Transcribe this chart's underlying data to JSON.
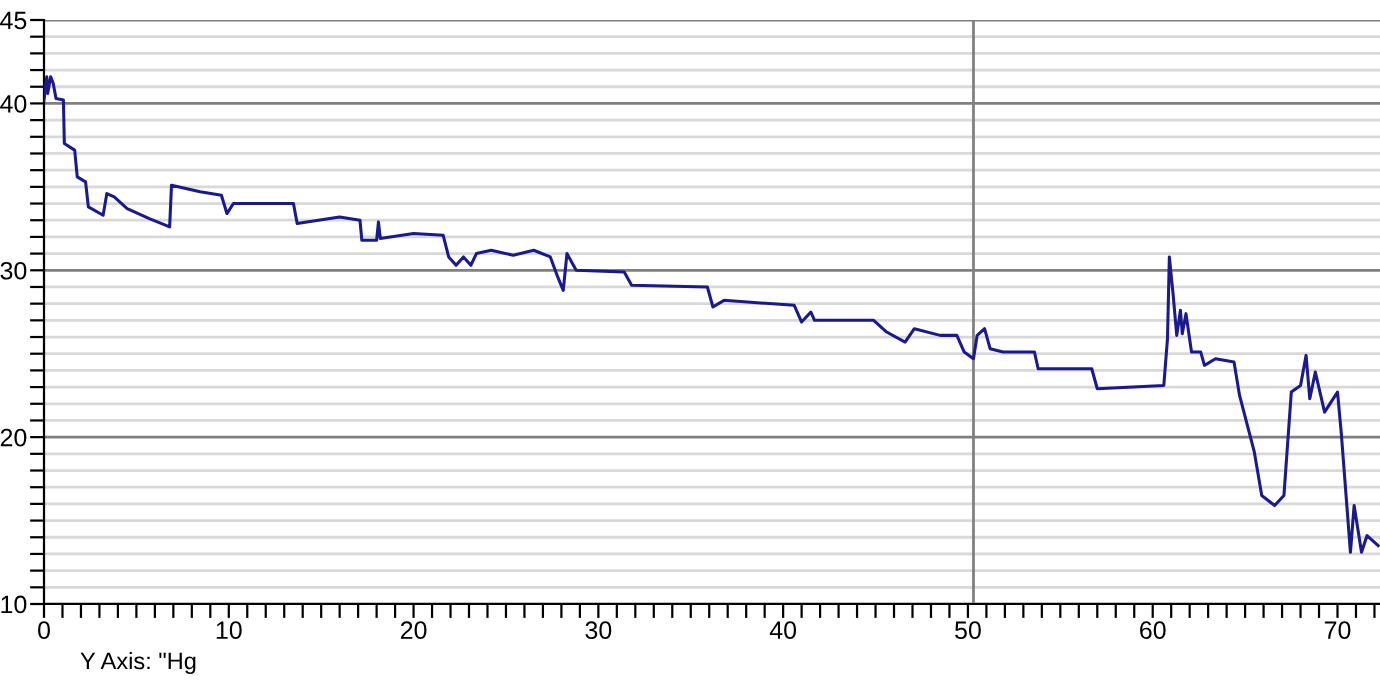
{
  "chart_data": {
    "type": "line",
    "annotations": [
      "Y Axis: \"Hg"
    ],
    "xlim": [
      0,
      72.3
    ],
    "ylim": [
      10,
      45
    ],
    "xticks": [
      0,
      {
        "value": 1,
        "label": null
      },
      {
        "value": 2,
        "label": null
      },
      {
        "value": 3,
        "label": null
      },
      {
        "value": 4,
        "label": null
      },
      {
        "value": 5,
        "label": null
      },
      {
        "value": 6,
        "label": null
      },
      {
        "value": 7,
        "label": null
      },
      {
        "value": 8,
        "label": null
      },
      {
        "value": 9,
        "label": null
      },
      10,
      {
        "value": 11,
        "label": null
      },
      {
        "value": 12,
        "label": null
      },
      {
        "value": 13,
        "label": null
      },
      {
        "value": 14,
        "label": null
      },
      {
        "value": 15,
        "label": null
      },
      {
        "value": 16,
        "label": null
      },
      {
        "value": 17,
        "label": null
      },
      {
        "value": 18,
        "label": null
      },
      {
        "value": 19,
        "label": null
      },
      20,
      {
        "value": 21,
        "label": null
      },
      {
        "value": 22,
        "label": null
      },
      {
        "value": 23,
        "label": null
      },
      {
        "value": 24,
        "label": null
      },
      {
        "value": 25,
        "label": null
      },
      {
        "value": 26,
        "label": null
      },
      {
        "value": 27,
        "label": null
      },
      {
        "value": 28,
        "label": null
      },
      {
        "value": 29,
        "label": null
      },
      30,
      {
        "value": 31,
        "label": null
      },
      {
        "value": 32,
        "label": null
      },
      {
        "value": 33,
        "label": null
      },
      {
        "value": 34,
        "label": null
      },
      {
        "value": 35,
        "label": null
      },
      {
        "value": 36,
        "label": null
      },
      {
        "value": 37,
        "label": null
      },
      {
        "value": 38,
        "label": null
      },
      {
        "value": 39,
        "label": null
      },
      40,
      {
        "value": 41,
        "label": null
      },
      {
        "value": 42,
        "label": null
      },
      {
        "value": 43,
        "label": null
      },
      {
        "value": 44,
        "label": null
      },
      {
        "value": 45,
        "label": null
      },
      {
        "value": 46,
        "label": null
      },
      {
        "value": 47,
        "label": null
      },
      {
        "value": 48,
        "label": null
      },
      {
        "value": 49,
        "label": null
      },
      50,
      {
        "value": 51,
        "label": null
      },
      {
        "value": 52,
        "label": null
      },
      {
        "value": 53,
        "label": null
      },
      {
        "value": 54,
        "label": null
      },
      {
        "value": 55,
        "label": null
      },
      {
        "value": 56,
        "label": null
      },
      {
        "value": 57,
        "label": null
      },
      {
        "value": 58,
        "label": null
      },
      {
        "value": 59,
        "label": null
      },
      60,
      {
        "value": 61,
        "label": null
      },
      {
        "value": 62,
        "label": null
      },
      {
        "value": 63,
        "label": null
      },
      {
        "value": 64,
        "label": null
      },
      {
        "value": 65,
        "label": null
      },
      {
        "value": 66,
        "label": null
      },
      {
        "value": 67,
        "label": null
      },
      {
        "value": 68,
        "label": null
      },
      {
        "value": 69,
        "label": null
      },
      70,
      {
        "value": 71,
        "label": null
      },
      {
        "value": 72,
        "label": null
      }
    ],
    "yticks": [
      10,
      {
        "value": 11,
        "label": null
      },
      {
        "value": 12,
        "label": null
      },
      {
        "value": 13,
        "label": null
      },
      {
        "value": 14,
        "label": null
      },
      {
        "value": 15,
        "label": null
      },
      {
        "value": 16,
        "label": null
      },
      {
        "value": 17,
        "label": null
      },
      {
        "value": 18,
        "label": null
      },
      {
        "value": 19,
        "label": null
      },
      20,
      {
        "value": 21,
        "label": null
      },
      {
        "value": 22,
        "label": null
      },
      {
        "value": 23,
        "label": null
      },
      {
        "value": 24,
        "label": null
      },
      {
        "value": 25,
        "label": null
      },
      {
        "value": 26,
        "label": null
      },
      {
        "value": 27,
        "label": null
      },
      {
        "value": 28,
        "label": null
      },
      {
        "value": 29,
        "label": null
      },
      30,
      {
        "value": 31,
        "label": null
      },
      {
        "value": 32,
        "label": null
      },
      {
        "value": 33,
        "label": null
      },
      {
        "value": 34,
        "label": null
      },
      {
        "value": 35,
        "label": null
      },
      {
        "value": 36,
        "label": null
      },
      {
        "value": 37,
        "label": null
      },
      {
        "value": 38,
        "label": null
      },
      {
        "value": 39,
        "label": null
      },
      40,
      {
        "value": 41,
        "label": null
      },
      {
        "value": 42,
        "label": null
      },
      {
        "value": 43,
        "label": null
      },
      {
        "value": 44,
        "label": null
      },
      45
    ],
    "grid": "y",
    "marker": "none",
    "line_style": "solid",
    "ref_lines": [
      {
        "axis": "x",
        "value": 50.3,
        "color": "#808080"
      }
    ],
    "series": [
      {
        "color": "#1a1a8c",
        "x": [
          0,
          0.15,
          0.2,
          0.36,
          0.5,
          0.65,
          1.05,
          1.1,
          1.66,
          1.8,
          2.25,
          2.4,
          3.2,
          3.4,
          3.8,
          4.5,
          5.7,
          6.8,
          6.9,
          8.45,
          9.6,
          9.9,
          10.25,
          13.5,
          13.7,
          16.0,
          17.1,
          17.2,
          18.0,
          18.1,
          18.2,
          20.0,
          21.6,
          21.9,
          22.3,
          22.7,
          23.1,
          23.4,
          24.2,
          25.4,
          26.5,
          27.4,
          27.8,
          28.1,
          28.3,
          28.8,
          31.4,
          31.8,
          35.9,
          36.2,
          36.8,
          40.6,
          41.0,
          41.5,
          41.7,
          44.9,
          45.6,
          46.6,
          47.1,
          48.5,
          49.4,
          49.8,
          50.3,
          50.5,
          50.9,
          51.2,
          51.9,
          53.6,
          53.8,
          56.7,
          57.0,
          60.6,
          60.8,
          60.9,
          61.1,
          61.3,
          61.5,
          61.6,
          61.8,
          62.1,
          62.6,
          62.8,
          63.4,
          64.4,
          64.7,
          65.5,
          65.9,
          66.6,
          67.1,
          67.5,
          68.0,
          68.3,
          68.5,
          68.8,
          69.3,
          70.0,
          70.2,
          70.7,
          70.9,
          71.3,
          71.6,
          72.2
        ],
        "values": [
          40.2,
          41.6,
          40.6,
          41.6,
          41.2,
          40.3,
          40.2,
          37.6,
          37.2,
          35.6,
          35.3,
          33.8,
          33.3,
          34.6,
          34.4,
          33.7,
          33.1,
          32.6,
          35.1,
          34.7,
          34.5,
          33.4,
          34.0,
          34.0,
          32.8,
          33.2,
          33.0,
          31.8,
          31.8,
          32.9,
          31.9,
          32.2,
          32.1,
          30.8,
          30.3,
          30.8,
          30.3,
          31.0,
          31.2,
          30.9,
          31.2,
          30.8,
          29.6,
          28.8,
          31.0,
          30.0,
          29.9,
          29.1,
          29.0,
          27.8,
          28.2,
          27.9,
          26.9,
          27.5,
          27.0,
          27.0,
          26.3,
          25.7,
          26.5,
          26.1,
          26.1,
          25.1,
          24.7,
          26.1,
          26.5,
          25.3,
          25.1,
          25.1,
          24.1,
          24.1,
          22.9,
          23.1,
          25.9,
          30.8,
          28.6,
          26.1,
          27.6,
          26.2,
          27.4,
          25.1,
          25.1,
          24.3,
          24.7,
          24.5,
          22.5,
          19.1,
          16.5,
          15.9,
          16.5,
          22.7,
          23.1,
          24.9,
          22.3,
          23.9,
          21.5,
          22.7,
          20.3,
          13.1,
          15.9,
          13.1,
          14.1,
          13.5
        ]
      }
    ]
  }
}
